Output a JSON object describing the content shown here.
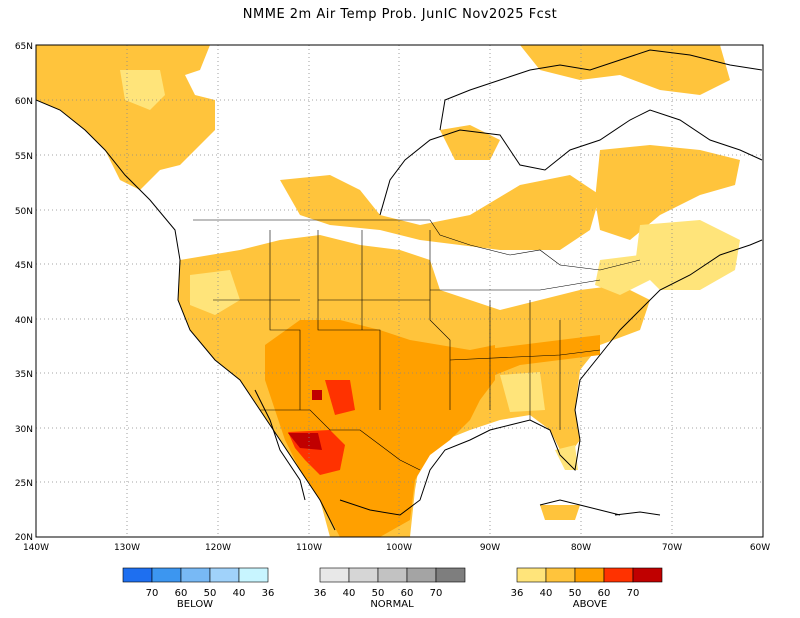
{
  "title": "NMME 2m Air Temp Prob. JunIC  Nov2025 Fcst",
  "map": {
    "lon_range": [
      -140,
      -60
    ],
    "lat_range": [
      20,
      65
    ],
    "lat_ticks": [
      "65N",
      "60N",
      "55N",
      "50N",
      "45N",
      "40N",
      "35N",
      "30N",
      "25N",
      "20N"
    ],
    "lon_ticks": [
      "140W",
      "130W",
      "120W",
      "110W",
      "100W",
      "90W",
      "80W",
      "70W",
      "60W"
    ],
    "grid": "dotted",
    "regions": [
      {
        "name": "alaska-yukon-coast",
        "category": "above",
        "level": "36-40"
      },
      {
        "name": "canadian-arctic",
        "category": "above",
        "level": "36-40"
      },
      {
        "name": "western-us",
        "category": "above",
        "level": "40-60"
      },
      {
        "name": "southwest-us",
        "category": "above",
        "level": "50-60"
      },
      {
        "name": "texas",
        "category": "above",
        "level": "50-60"
      },
      {
        "name": "northern-mexico",
        "category": "above",
        "level": "60-70"
      },
      {
        "name": "southeast-us",
        "category": "above",
        "level": "36-50"
      },
      {
        "name": "great-lakes",
        "category": "above",
        "level": "36-40"
      },
      {
        "name": "quebec",
        "category": "above",
        "level": "36-40"
      }
    ]
  },
  "legend": {
    "below": {
      "label": "BELOW",
      "ticks": [
        "70",
        "60",
        "50",
        "40",
        "36"
      ],
      "colors": [
        "#1e6ff0",
        "#3c96f0",
        "#78b9f5",
        "#a0d2fa",
        "#c8f5ff"
      ]
    },
    "normal": {
      "label": "NORMAL",
      "ticks": [
        "36",
        "40",
        "50",
        "60",
        "70"
      ],
      "colors": [
        "#e8e8e8",
        "#d6d6d6",
        "#c2c2c2",
        "#a4a4a4",
        "#7e7e7e"
      ]
    },
    "above": {
      "label": "ABOVE",
      "ticks": [
        "36",
        "40",
        "50",
        "60",
        "70"
      ],
      "colors": [
        "#ffe47a",
        "#ffc43c",
        "#ffa000",
        "#ff3200",
        "#c00000"
      ]
    }
  }
}
